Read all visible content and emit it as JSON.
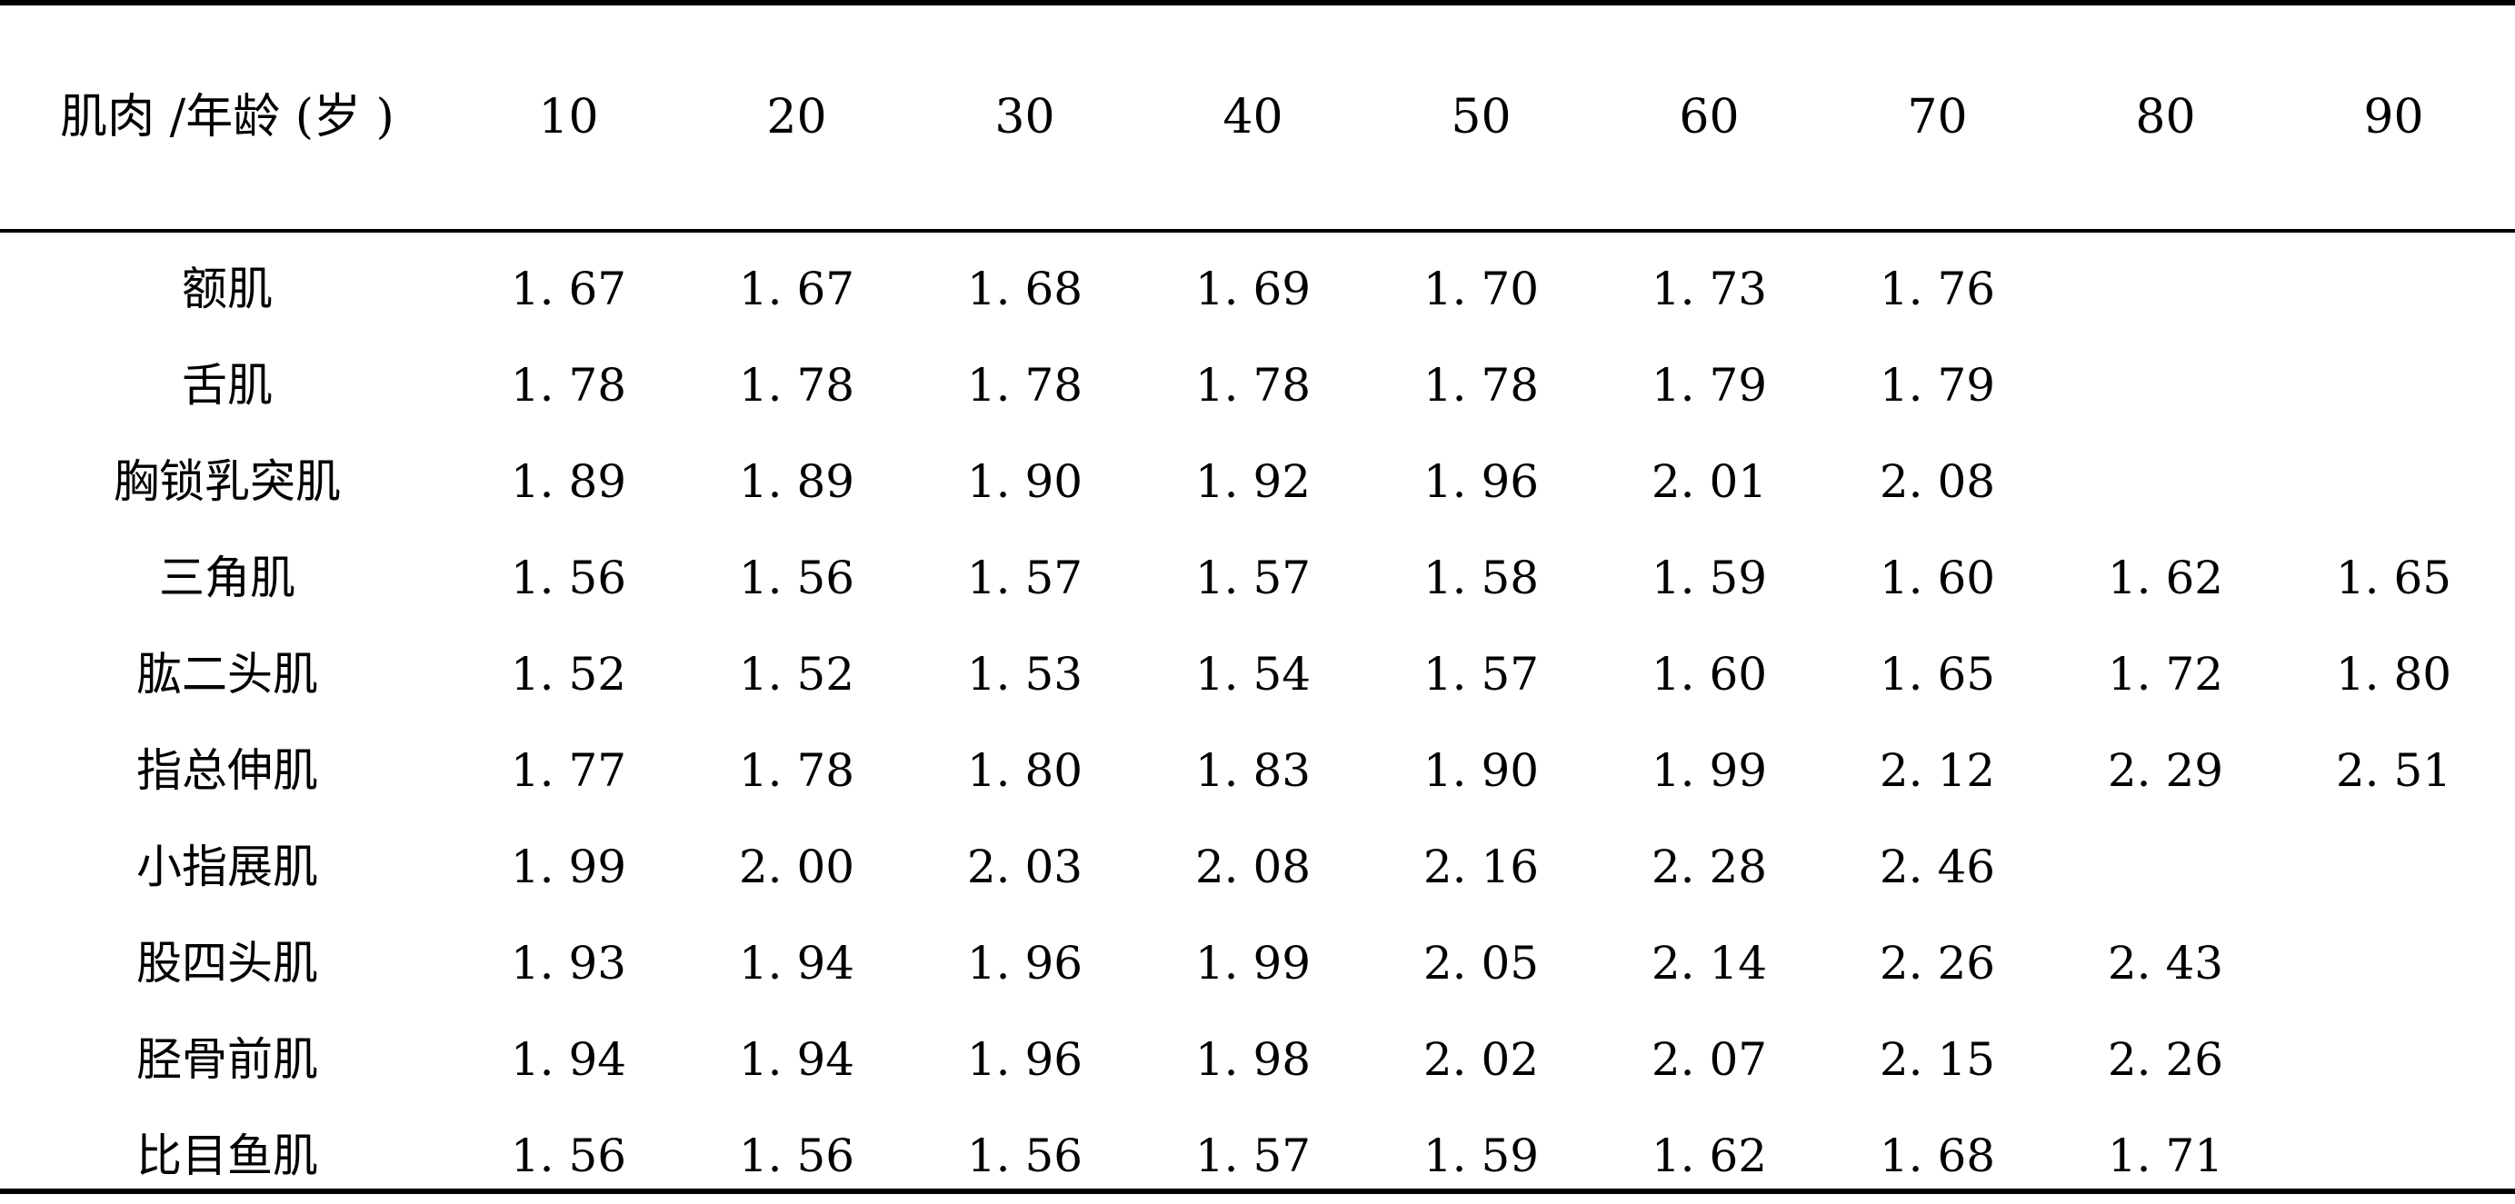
{
  "table": {
    "header": {
      "label": "肌肉 /年龄 (岁 )",
      "ages": [
        "10",
        "20",
        "30",
        "40",
        "50",
        "60",
        "70",
        "80",
        "90"
      ]
    },
    "rows": [
      {
        "name": "额肌",
        "values": [
          "1. 67",
          "1. 67",
          "1. 68",
          "1. 69",
          "1. 70",
          "1. 73",
          "1. 76",
          "",
          ""
        ]
      },
      {
        "name": "舌肌",
        "values": [
          "1. 78",
          "1. 78",
          "1. 78",
          "1. 78",
          "1. 78",
          "1. 79",
          "1. 79",
          "",
          ""
        ]
      },
      {
        "name": "胸锁乳突肌",
        "values": [
          "1. 89",
          "1. 89",
          "1. 90",
          "1. 92",
          "1. 96",
          "2. 01",
          "2. 08",
          "",
          ""
        ]
      },
      {
        "name": "三角肌",
        "values": [
          "1. 56",
          "1. 56",
          "1. 57",
          "1. 57",
          "1. 58",
          "1. 59",
          "1. 60",
          "1. 62",
          "1. 65"
        ]
      },
      {
        "name": "肱二头肌",
        "values": [
          "1. 52",
          "1. 52",
          "1. 53",
          "1. 54",
          "1. 57",
          "1. 60",
          "1. 65",
          "1. 72",
          "1. 80"
        ]
      },
      {
        "name": "指总伸肌",
        "values": [
          "1. 77",
          "1. 78",
          "1. 80",
          "1. 83",
          "1. 90",
          "1. 99",
          "2. 12",
          "2. 29",
          "2. 51"
        ]
      },
      {
        "name": "小指展肌",
        "values": [
          "1. 99",
          "2. 00",
          "2. 03",
          "2. 08",
          "2. 16",
          "2. 28",
          "2. 46",
          "",
          ""
        ]
      },
      {
        "name": "股四头肌",
        "values": [
          "1. 93",
          "1. 94",
          "1. 96",
          "1. 99",
          "2. 05",
          "2. 14",
          "2. 26",
          "2. 43",
          ""
        ]
      },
      {
        "name": "胫骨前肌",
        "values": [
          "1. 94",
          "1. 94",
          "1. 96",
          "1. 98",
          "2. 02",
          "2. 07",
          "2. 15",
          "2. 26",
          ""
        ]
      },
      {
        "name": "比目鱼肌",
        "values": [
          "1. 56",
          "1. 56",
          "1. 56",
          "1. 57",
          "1. 59",
          "1. 62",
          "1. 68",
          "1. 71",
          ""
        ]
      }
    ]
  }
}
